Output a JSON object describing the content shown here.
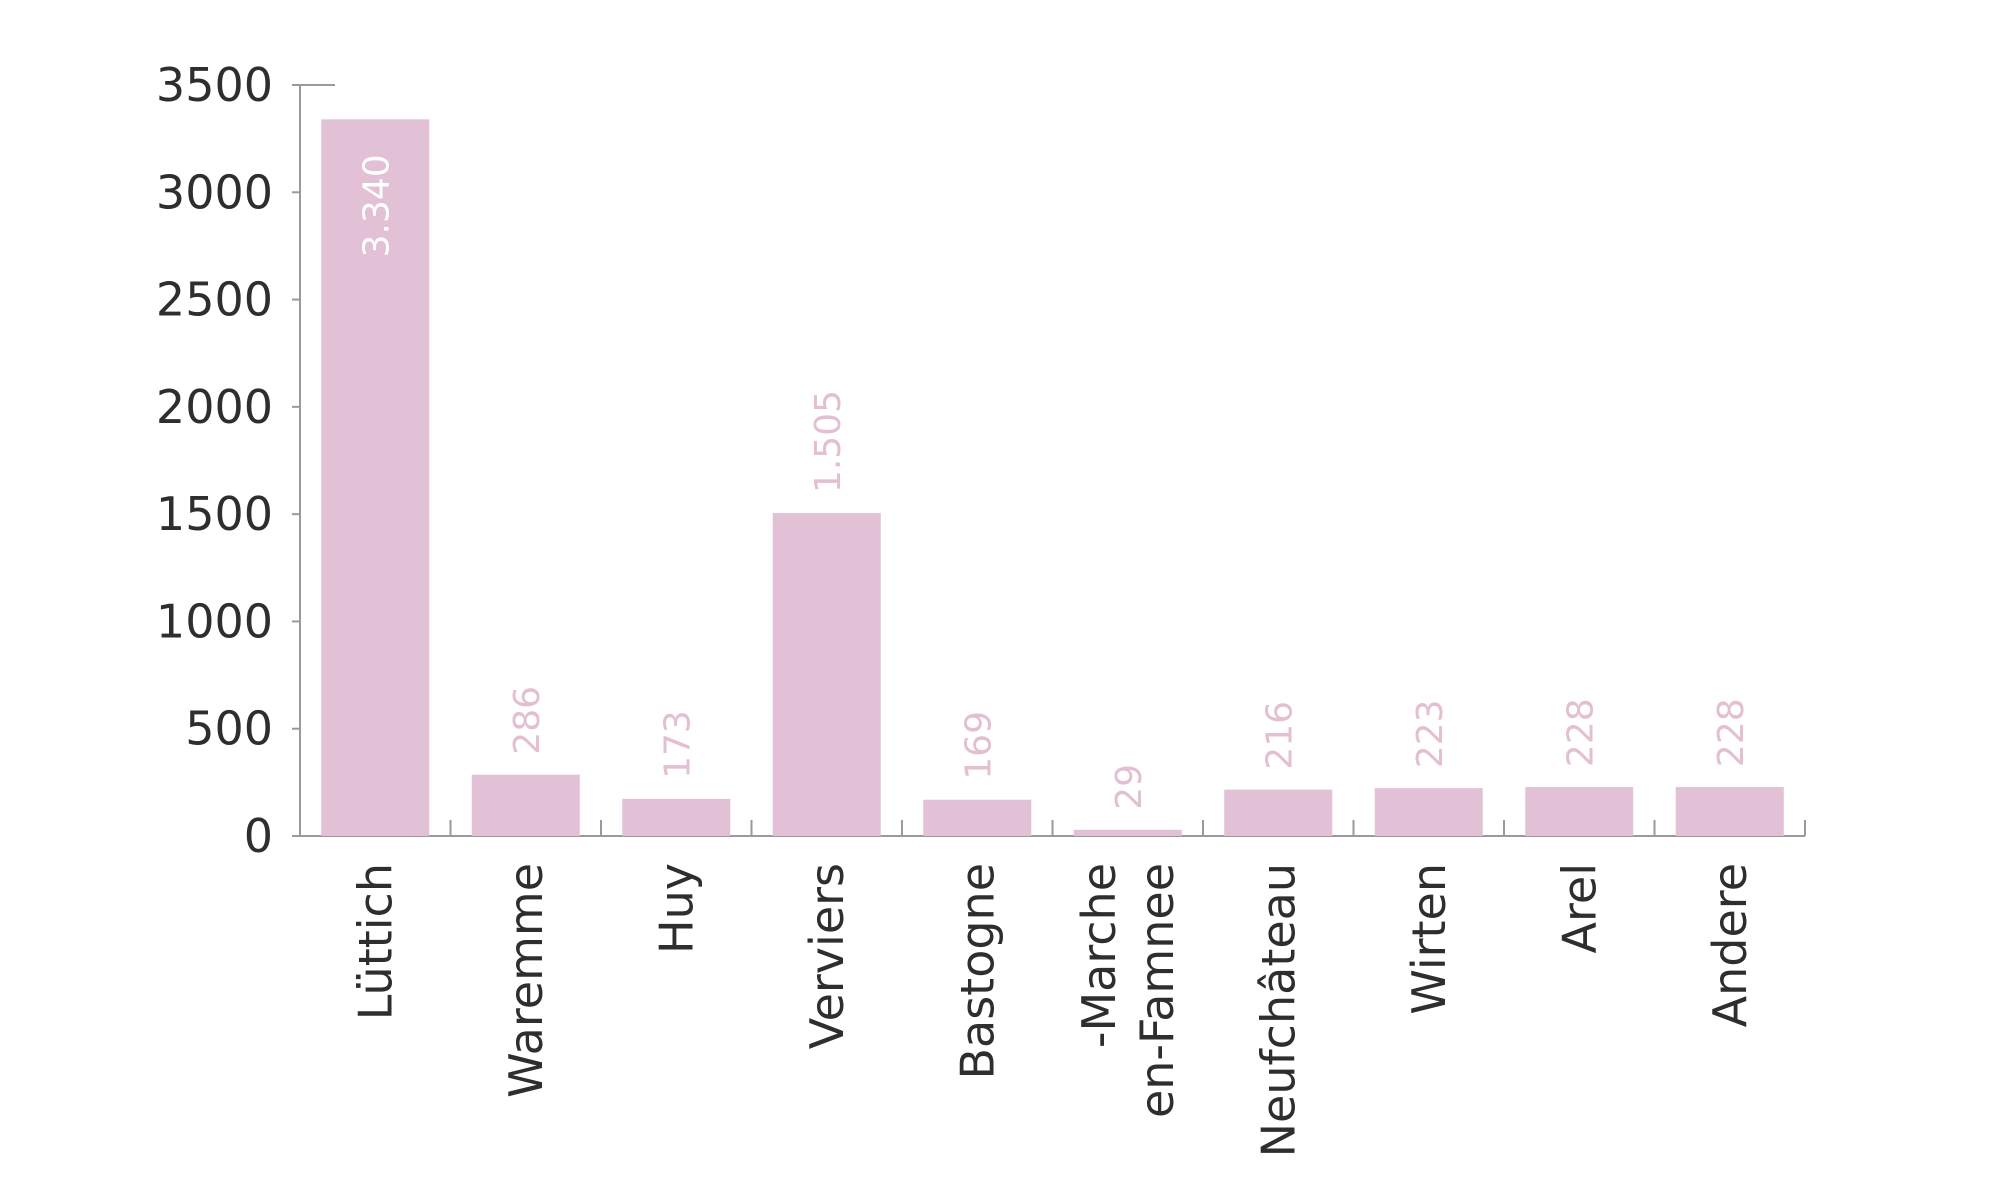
{
  "chart_data": {
    "type": "bar",
    "title": "",
    "xlabel": "",
    "ylabel": "",
    "categories": [
      "Lüttich",
      "Waremme",
      "Huy",
      "Verviers",
      "Bastogne",
      "-Marche en-Famnee",
      "Neufchâteau",
      "Wirten",
      "Arel",
      "Andere"
    ],
    "category_lines": [
      [
        "Lüttich"
      ],
      [
        "Waremme"
      ],
      [
        "Huy"
      ],
      [
        "Verviers"
      ],
      [
        "Bastogne"
      ],
      [
        "-Marche",
        "en-Famnee"
      ],
      [
        "Neufchâteau"
      ],
      [
        "Wirten"
      ],
      [
        "Arel"
      ],
      [
        "Andere"
      ]
    ],
    "values": [
      3340,
      286,
      173,
      1505,
      169,
      29,
      216,
      223,
      228,
      228
    ],
    "value_labels": [
      "3.340",
      "286",
      "173",
      "1.505",
      "169",
      "29",
      "216",
      "223",
      "228",
      "228"
    ],
    "ylim": [
      0,
      3500
    ],
    "yticks": [
      0,
      500,
      1000,
      1500,
      2000,
      2500,
      3000,
      3500
    ],
    "ytick_labels": [
      "0",
      "500",
      "1000",
      "1500",
      "2000",
      "2500",
      "3000",
      "3500"
    ],
    "grid": false,
    "legend": "none",
    "colors": {
      "bar": "#e2c0d5",
      "value_label": "#e3bfd3",
      "value_label_inside": "#ffffff",
      "axis": "#9a9a9a",
      "text": "#2e2e2e"
    }
  }
}
